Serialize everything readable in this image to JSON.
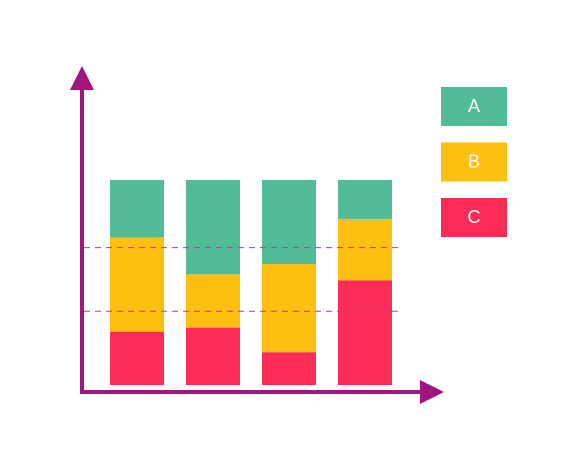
{
  "chart_data": {
    "type": "stacked-bar",
    "categories": [
      null,
      null,
      null,
      null
    ],
    "series": [
      {
        "name": "A",
        "color": "#52bb98",
        "values": [
          28,
          46,
          41,
          19
        ]
      },
      {
        "name": "B",
        "color": "#fdbf10",
        "values": [
          46,
          26,
          43,
          30
        ]
      },
      {
        "name": "C",
        "color": "#fb2c55",
        "values": [
          26,
          28,
          16,
          51
        ]
      }
    ],
    "stack_order": "bottom-up-reversed",
    "ylim": [
      0,
      100
    ],
    "reference_lines": [
      36,
      67
    ],
    "reference_color": "#c03a8a",
    "axis_color": "#a0157e",
    "legend": "top-right"
  }
}
